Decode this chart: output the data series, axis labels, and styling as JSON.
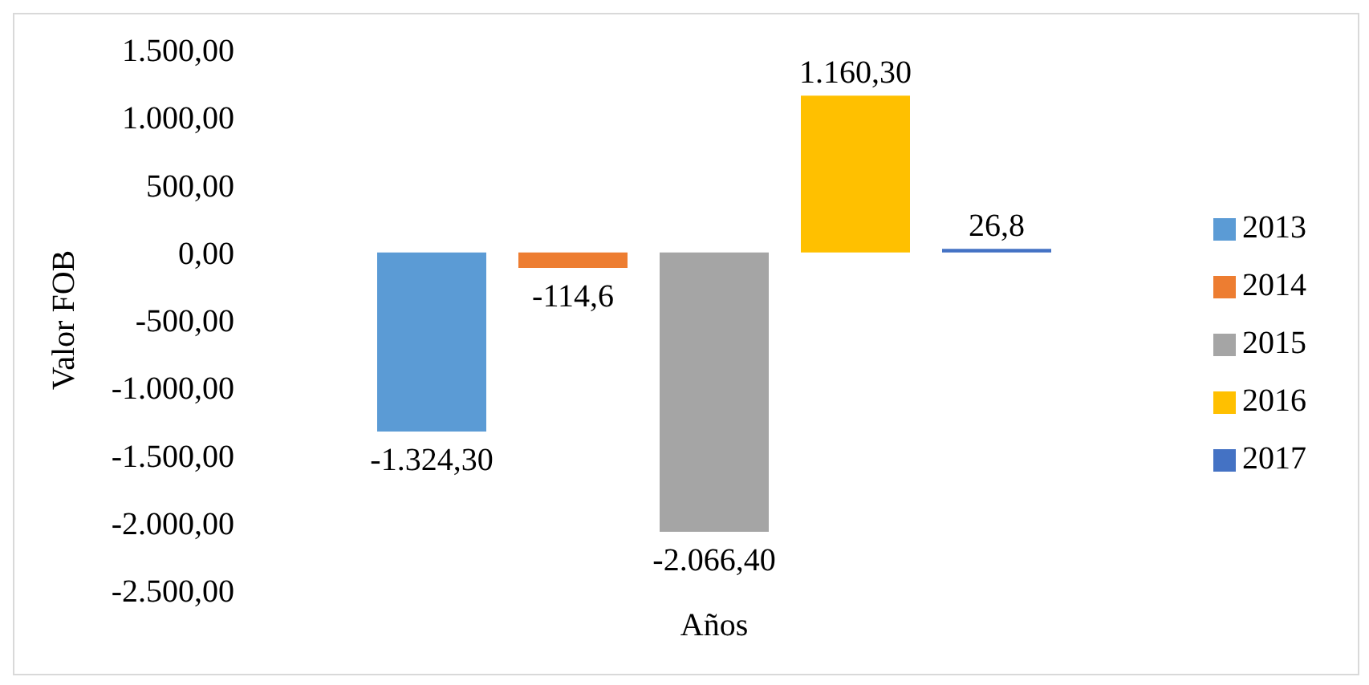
{
  "chart_data": {
    "type": "bar",
    "xlabel": "Años",
    "ylabel": "Valor FOB",
    "categories": [
      null
    ],
    "series": [
      {
        "name": "2013",
        "color": "#5b9bd5",
        "values": [
          -1324.3
        ],
        "value_labels": [
          "-1.324,30"
        ]
      },
      {
        "name": "2014",
        "color": "#ed7d31",
        "values": [
          -114.6
        ],
        "value_labels": [
          "-114,6"
        ]
      },
      {
        "name": "2015",
        "color": "#a5a5a5",
        "values": [
          -2066.4
        ],
        "value_labels": [
          "-2.066,40"
        ]
      },
      {
        "name": "2016",
        "color": "#ffc000",
        "values": [
          1160.3
        ],
        "value_labels": [
          "1.160,30"
        ]
      },
      {
        "name": "2017",
        "color": "#4472c4",
        "values": [
          26.8
        ],
        "value_labels": [
          "26,8"
        ]
      }
    ],
    "ylim": [
      -2500,
      1500
    ],
    "yticks": [
      {
        "value": -2500,
        "label": "-2.500,00"
      },
      {
        "value": -2000,
        "label": "-2.000,00"
      },
      {
        "value": -1500,
        "label": "-1.500,00"
      },
      {
        "value": -1000,
        "label": "-1.000,00"
      },
      {
        "value": -500,
        "label": "-500,00"
      },
      {
        "value": 0,
        "label": "0,00"
      },
      {
        "value": 500,
        "label": "500,00"
      },
      {
        "value": 1000,
        "label": "1.000,00"
      },
      {
        "value": 1500,
        "label": "1.500,00"
      }
    ],
    "grid": false,
    "legend": "right"
  }
}
